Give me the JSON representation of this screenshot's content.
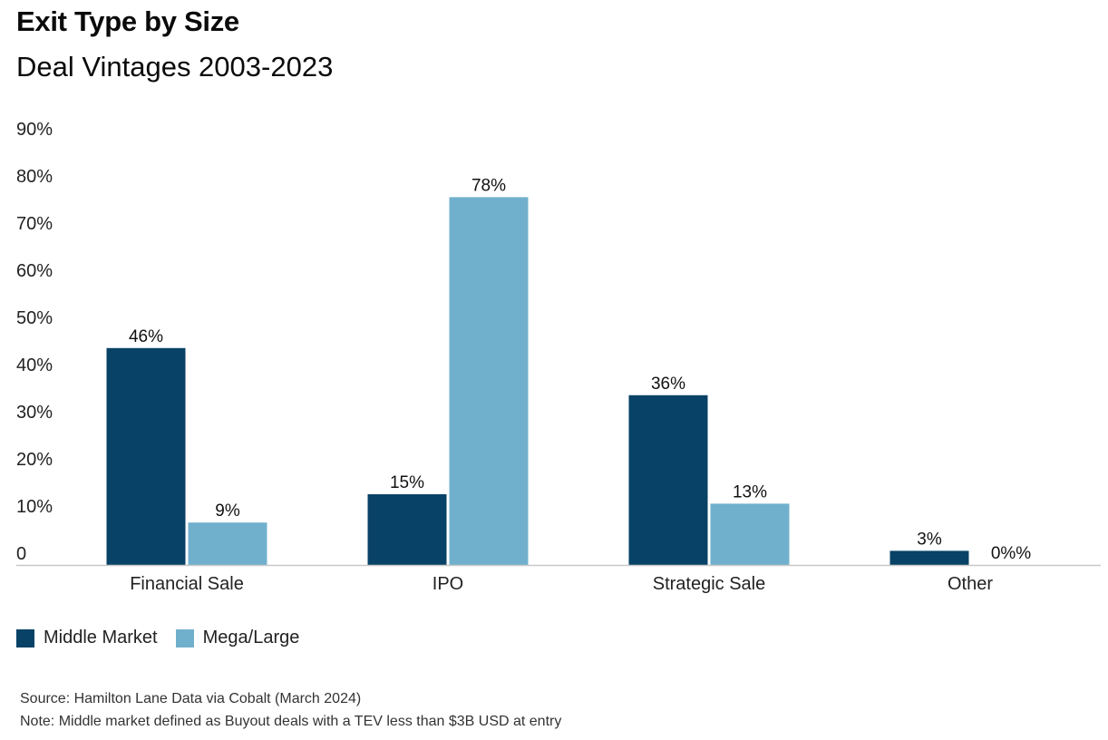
{
  "title": "Exit Type by Size",
  "subtitle": "Deal Vintages 2003-2023",
  "colors": {
    "middle_market": "#084266",
    "mega_large": "#71b0cd",
    "axis": "#c8c8c8",
    "text": "#111111"
  },
  "legend": {
    "items": [
      {
        "label": "Middle Market"
      },
      {
        "label": "Mega/Large"
      }
    ]
  },
  "chart_data": {
    "type": "bar",
    "categories": [
      "Financial Sale",
      "IPO",
      "Strategic Sale",
      "Other"
    ],
    "series": [
      {
        "name": "Middle Market",
        "values": [
          46,
          15,
          36,
          3
        ],
        "labels": [
          "46%",
          "15%",
          "36%",
          "3%"
        ]
      },
      {
        "name": "Mega/Large",
        "values": [
          9,
          78,
          13,
          0
        ],
        "labels": [
          "9%",
          "78%",
          "13%",
          "0%%"
        ]
      }
    ],
    "y_ticks": [
      {
        "value": 0,
        "label": "0"
      },
      {
        "value": 10,
        "label": "10%"
      },
      {
        "value": 20,
        "label": "20%"
      },
      {
        "value": 30,
        "label": "30%"
      },
      {
        "value": 40,
        "label": "40%"
      },
      {
        "value": 50,
        "label": "50%"
      },
      {
        "value": 60,
        "label": "60%"
      },
      {
        "value": 70,
        "label": "70%"
      },
      {
        "value": 80,
        "label": "80%"
      },
      {
        "value": 90,
        "label": "90%"
      }
    ],
    "ylim": [
      0,
      90
    ],
    "grid": false,
    "legend_position": "bottom-left"
  },
  "source": "Source: Hamilton Lane Data via Cobalt (March 2024)",
  "note": "Note: Middle market defined as Buyout deals with a TEV less than $3B USD at entry"
}
